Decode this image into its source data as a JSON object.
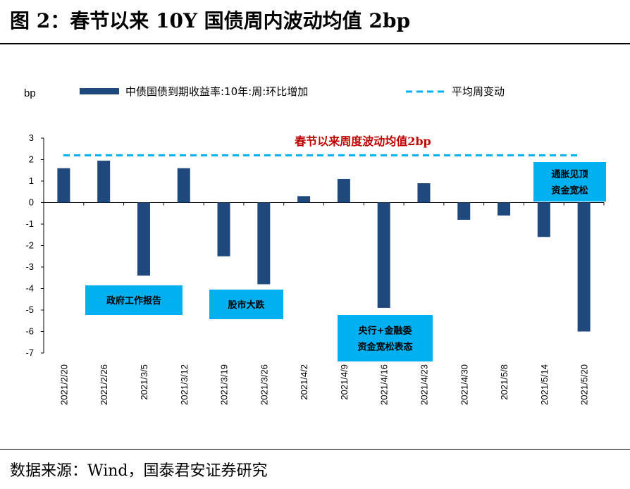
{
  "figure_title": "图 2：春节以来 10Y 国债周内波动均值 2bp",
  "source": "数据来源：Wind，国泰君安证券研究",
  "colors": {
    "bar": "#1f497d",
    "avg_line": "#00b0f0",
    "avg_text": "#c00000",
    "box": "#00b0f0"
  },
  "chart_data": {
    "type": "bar",
    "title": "",
    "unit": "bp",
    "categories": [
      "2021/2/20",
      "2021/2/26",
      "2021/3/5",
      "2021/3/12",
      "2021/3/19",
      "2021/3/26",
      "2021/4/2",
      "2021/4/9",
      "2021/4/16",
      "2021/4/23",
      "2021/4/30",
      "2021/5/8",
      "2021/5/14",
      "2021/5/20"
    ],
    "series": [
      {
        "name": "中债国债到期收益率:10年:周:环比增加",
        "values": [
          1.6,
          1.95,
          -3.4,
          1.6,
          -2.5,
          -3.8,
          0.3,
          1.1,
          -4.9,
          0.9,
          -0.8,
          -0.6,
          -1.6,
          -6.0
        ]
      },
      {
        "name": "平均周变动",
        "type": "line",
        "style": "dashed",
        "value": 2.2
      }
    ],
    "ylim": [
      -7,
      3
    ],
    "yticks": [
      "3",
      "2",
      "1",
      "0",
      "-1",
      "-2",
      "-3",
      "-4",
      "-5",
      "-6",
      "-7"
    ],
    "ytick_values": [
      3,
      2,
      1,
      0,
      -1,
      -2,
      -3,
      -4,
      -5,
      -6,
      -7
    ],
    "grid": false,
    "legend_position": "top",
    "avg_label": "春节以来周度波动均值2bp",
    "annotations": [
      {
        "lines": [
          "政府工作报告"
        ],
        "near": "2021/3/5"
      },
      {
        "lines": [
          "股市大跌"
        ],
        "near": "2021/3/26"
      },
      {
        "lines": [
          "央行+金融委",
          "资金宽松表态"
        ],
        "near": "2021/4/16"
      },
      {
        "lines": [
          "通胀见顶",
          "资金宽松"
        ],
        "near": "2021/5/20"
      }
    ]
  }
}
